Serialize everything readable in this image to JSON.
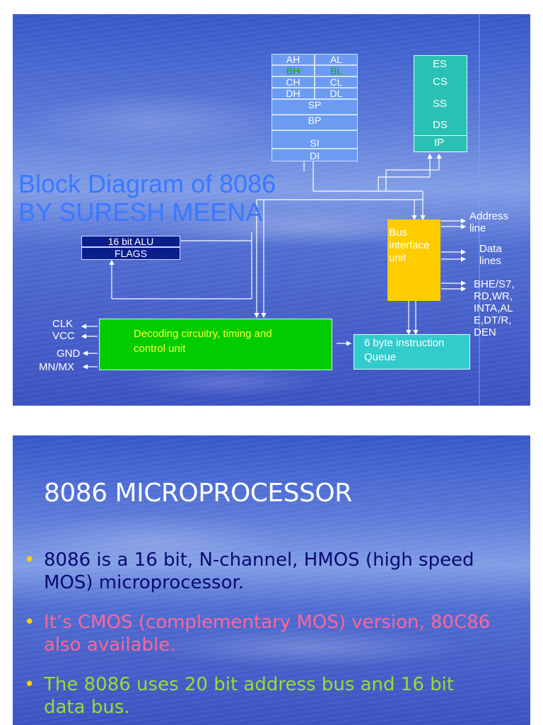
{
  "slide1": {
    "title_line1": "Block Diagram of 8086",
    "title_line2": "BY SURESH MEENA",
    "registers": {
      "rows": [
        {
          "left": "AH",
          "right": "AL"
        },
        {
          "left": "BH",
          "right": "BL"
        },
        {
          "left": "CH",
          "right": "CL"
        },
        {
          "left": "DH",
          "right": "DL"
        }
      ],
      "pointers": [
        "SP",
        "BP",
        "SI",
        "DI"
      ]
    },
    "segments": [
      "ES",
      "CS",
      "SS",
      "DS",
      "IP"
    ],
    "alu_label": "16 bit ALU",
    "flags_label": "FLAGS",
    "biu_label": "Bus interface unit",
    "decoder_label": "Decoding circuitry, timing and control unit",
    "queue_label": "6 byte instruction Queue",
    "bus_labels": {
      "address": "Address line",
      "data": "Data lines",
      "control": "BHE/S7, RD,WR, INTA,AL E,DT/R, DEN"
    },
    "signals": [
      "CLK",
      "VCC",
      "GND",
      "MN/MX"
    ],
    "colors": {
      "registers": "#6c9bf2",
      "segments": "#2bc0b4",
      "biu": "#ffcc00",
      "decoder": "#00cc00",
      "queue": "#33cccc",
      "alu": "#0a1f8a"
    }
  },
  "slide2": {
    "title": "8086 MICROPROCESSOR",
    "bullets": [
      {
        "text": "8086 is a 16 bit, N-channel, HMOS (high speed MOS) microprocessor.",
        "color": "#0a0a70"
      },
      {
        "text": "It’s CMOS (complementary MOS) version, 80C86 also available.",
        "color": "#ff6699"
      },
      {
        "text": "The 8086 uses 20 bit address bus and 16 bit data bus.",
        "color": "#99dd33"
      }
    ]
  }
}
